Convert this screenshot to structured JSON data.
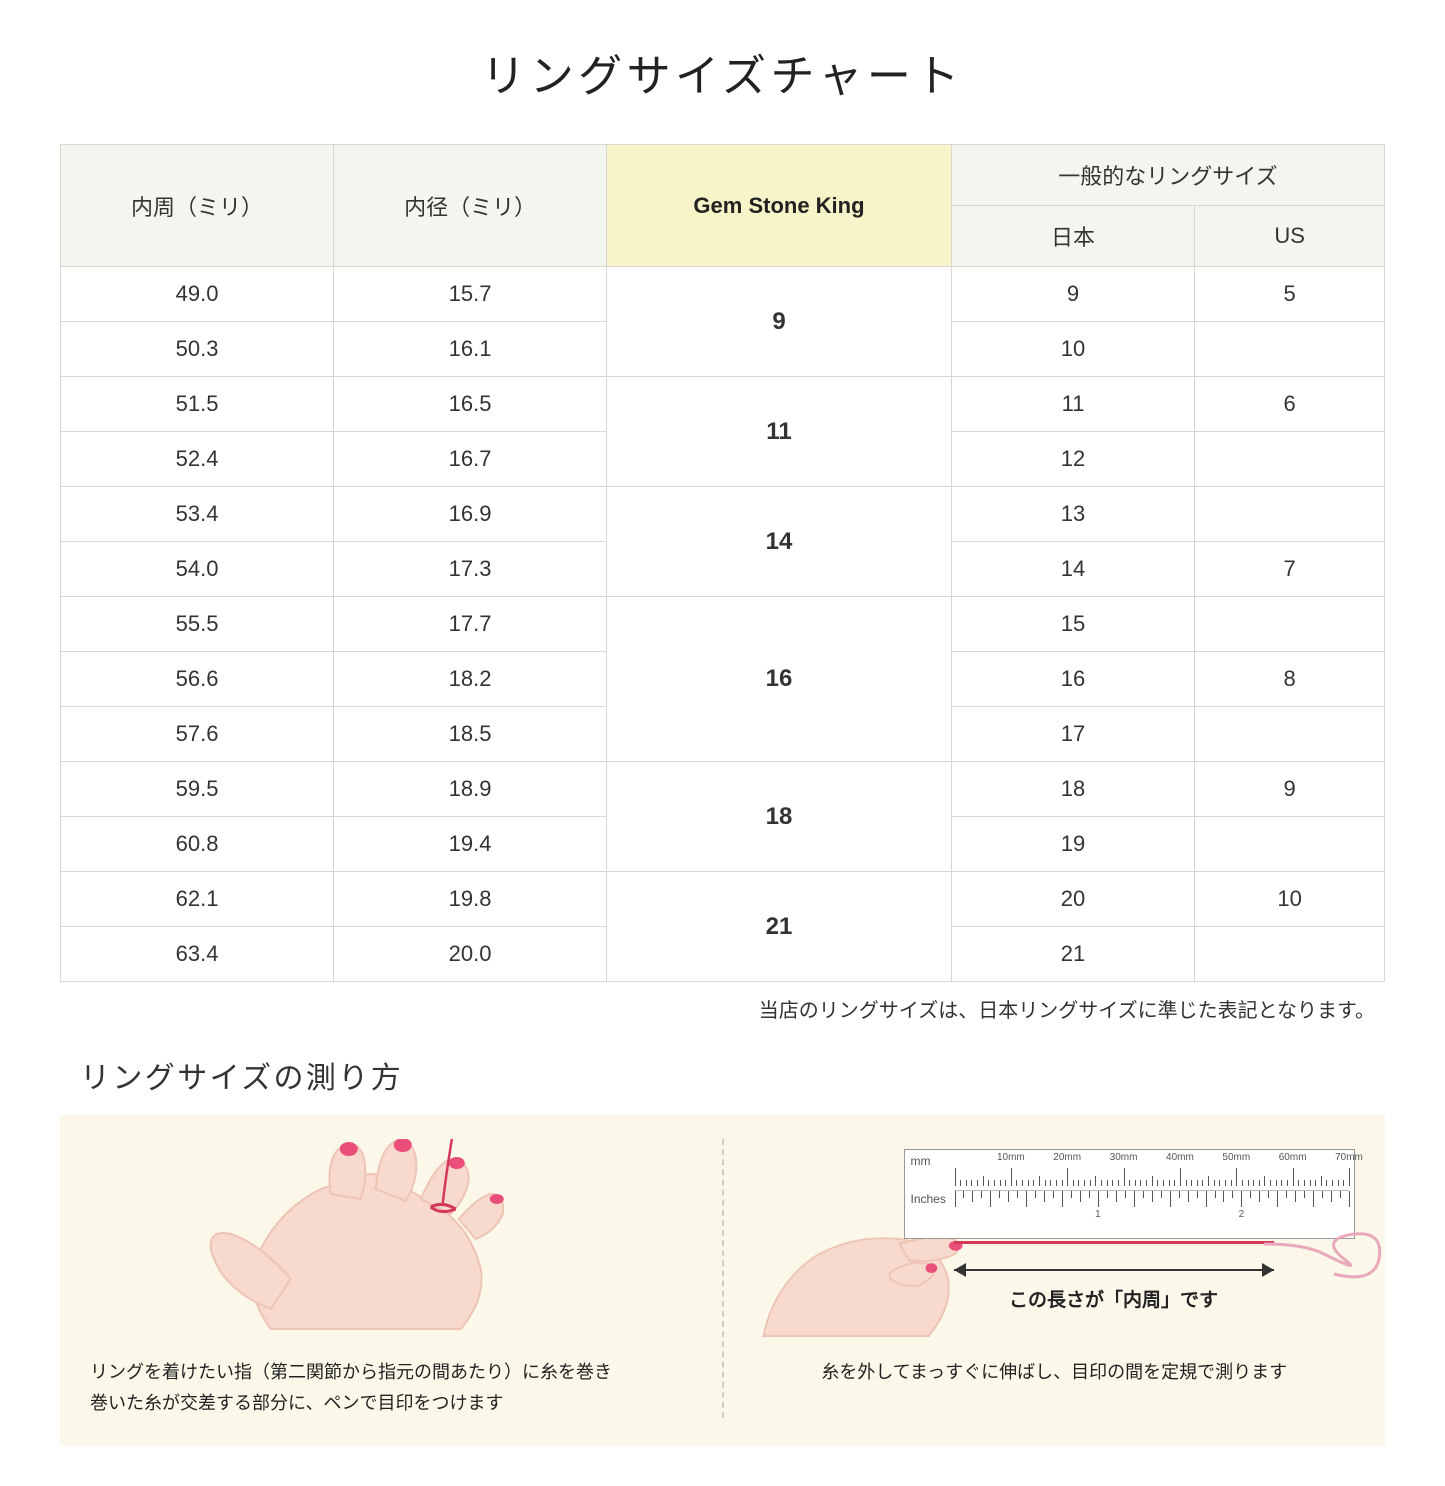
{
  "title": "リングサイズチャート",
  "table": {
    "headers": {
      "circumference": "内周（ミリ）",
      "diameter": "内径（ミリ）",
      "gsk": "Gem Stone King",
      "general": "一般的なリングサイズ",
      "japan": "日本",
      "us": "US"
    },
    "header_bg": "#f5f5ef",
    "gsk_header_bg": "#f6f4c8",
    "border_color": "#d8d8d0",
    "groups": [
      {
        "gsk": "9",
        "rows": [
          {
            "circ": "49.0",
            "dia": "15.7",
            "jp": "9",
            "us": "5"
          },
          {
            "circ": "50.3",
            "dia": "16.1",
            "jp": "10",
            "us": ""
          }
        ]
      },
      {
        "gsk": "11",
        "rows": [
          {
            "circ": "51.5",
            "dia": "16.5",
            "jp": "11",
            "us": "6"
          },
          {
            "circ": "52.4",
            "dia": "16.7",
            "jp": "12",
            "us": ""
          }
        ]
      },
      {
        "gsk": "14",
        "rows": [
          {
            "circ": "53.4",
            "dia": "16.9",
            "jp": "13",
            "us": ""
          },
          {
            "circ": "54.0",
            "dia": "17.3",
            "jp": "14",
            "us": "7"
          }
        ]
      },
      {
        "gsk": "16",
        "rows": [
          {
            "circ": "55.5",
            "dia": "17.7",
            "jp": "15",
            "us": ""
          },
          {
            "circ": "56.6",
            "dia": "18.2",
            "jp": "16",
            "us": "8"
          },
          {
            "circ": "57.6",
            "dia": "18.5",
            "jp": "17",
            "us": ""
          }
        ]
      },
      {
        "gsk": "18",
        "rows": [
          {
            "circ": "59.5",
            "dia": "18.9",
            "jp": "18",
            "us": "9"
          },
          {
            "circ": "60.8",
            "dia": "19.4",
            "jp": "19",
            "us": ""
          }
        ]
      },
      {
        "gsk": "21",
        "rows": [
          {
            "circ": "62.1",
            "dia": "19.8",
            "jp": "20",
            "us": "10"
          },
          {
            "circ": "63.4",
            "dia": "20.0",
            "jp": "21",
            "us": ""
          }
        ]
      }
    ]
  },
  "note": "当店のリングサイズは、日本リングサイズに準じた表記となります。",
  "howto": {
    "title": "リングサイズの測り方",
    "bg": "#fbf8e9",
    "left_text": "リングを着けたい指（第二関節から指元の間あたり）に糸を巻き\n巻いた糸が交差する部分に、ペンで目印をつけます",
    "right_text": "糸を外してまっすぐに伸ばし、目印の間を定規で測ります",
    "measure_label": "この長さが「内周」です",
    "ruler": {
      "mm_label": "mm",
      "in_label": "Inches",
      "mm_ticks": [
        "10mm",
        "20mm",
        "30mm",
        "40mm",
        "50mm",
        "60mm",
        "70mm"
      ],
      "in_ticks": [
        "1",
        "2"
      ]
    },
    "hand_skin": "#f7d9ce",
    "hand_shadow": "#eec4b5",
    "nail_color": "#e94f7a",
    "thread_color": "#d33a5a"
  }
}
